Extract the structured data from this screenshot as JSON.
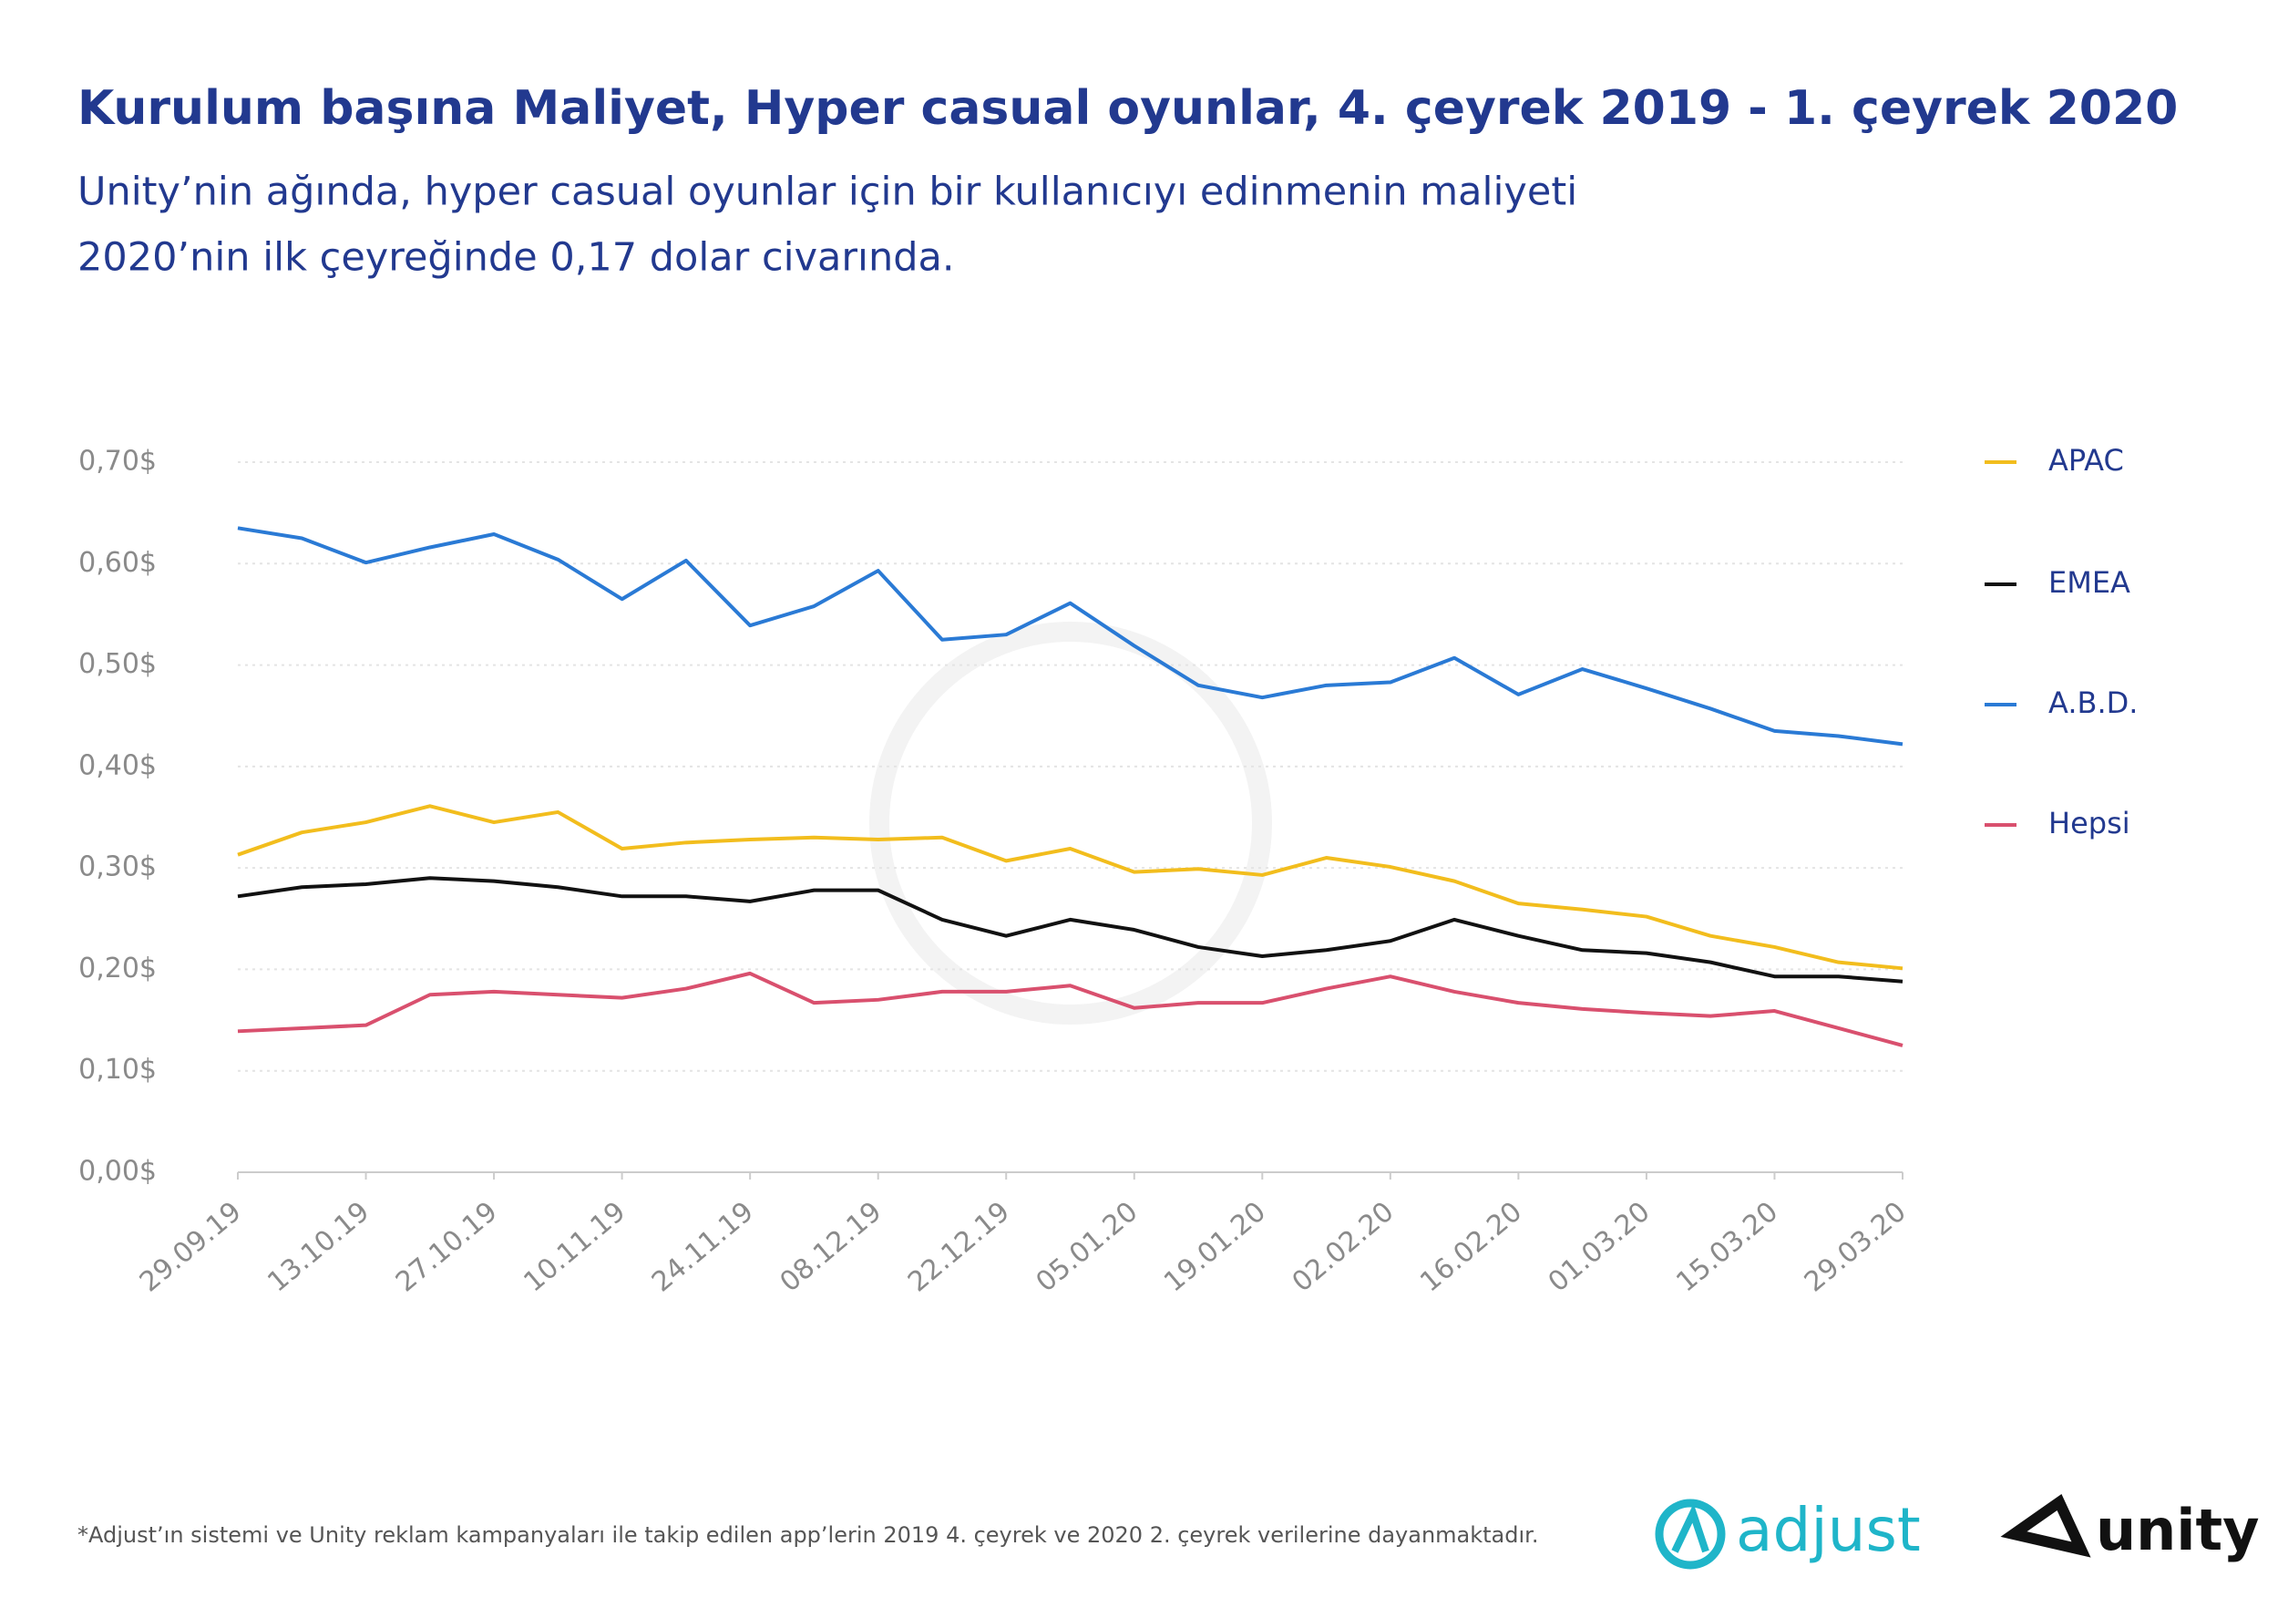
{
  "chart_data": {
    "type": "line",
    "title": "Kurulum başına Maliyet, Hyper casual oyunlar, 4. çeyrek 2019 - 1. çeyrek 2020",
    "subtitle": [
      "Unity’nin ağında, hyper casual oyunlar için bir kullanıcıyı edinmenin maliyeti",
      "2020’nin ilk çeyreğinde 0,17 dolar civarında."
    ],
    "footnote": "*Adjust’ın sistemi ve Unity reklam kampanyaları ile takip edilen app’lerin 2019 4. çeyrek ve 2020 2. çeyrek verilerine dayanmaktadır.",
    "logos": [
      "adjust",
      "unity"
    ],
    "categories": [
      "29.09.19",
      null,
      "13.10.19",
      null,
      "27.10.19",
      null,
      "10.11.19",
      null,
      "24.11.19",
      null,
      "08.12.19",
      null,
      "22.12.19",
      null,
      "05.01.20",
      null,
      "19.01.20",
      null,
      "02.02.20",
      null,
      "16.02.20",
      null,
      "01.03.20",
      null,
      "15.03.20",
      null,
      "29.03.20"
    ],
    "series": [
      {
        "name": "APAC",
        "color": "#f2bd1d",
        "values": [
          0.313,
          0.335,
          0.345,
          0.361,
          0.345,
          0.355,
          0.319,
          0.325,
          0.328,
          0.33,
          0.328,
          0.33,
          0.307,
          0.319,
          0.296,
          0.299,
          0.293,
          0.31,
          0.301,
          0.287,
          0.265,
          0.259,
          0.252,
          0.233,
          0.222,
          0.207,
          0.201
        ]
      },
      {
        "name": "EMEA",
        "color": "#111111",
        "values": [
          0.272,
          0.281,
          0.284,
          0.29,
          0.287,
          0.281,
          0.272,
          0.272,
          0.267,
          0.278,
          0.278,
          0.249,
          0.233,
          0.249,
          0.239,
          0.222,
          0.213,
          0.219,
          0.228,
          0.249,
          0.233,
          0.219,
          0.216,
          0.207,
          0.193,
          0.193,
          0.188
        ]
      },
      {
        "name": "A.B.D.",
        "color": "#2a7ad5",
        "values": [
          0.635,
          0.625,
          0.601,
          0.616,
          0.629,
          0.604,
          0.565,
          0.603,
          0.539,
          0.558,
          0.593,
          0.525,
          0.53,
          0.561,
          0.519,
          0.48,
          0.468,
          0.48,
          0.483,
          0.507,
          0.471,
          0.496,
          0.477,
          0.457,
          0.435,
          0.43,
          0.422
        ]
      },
      {
        "name": "Hepsi",
        "color": "#d9506e",
        "values": [
          0.139,
          0.142,
          0.145,
          0.175,
          0.178,
          0.175,
          0.172,
          0.181,
          0.196,
          0.167,
          0.17,
          0.178,
          0.178,
          0.184,
          0.162,
          0.167,
          0.167,
          0.181,
          0.193,
          0.178,
          0.167,
          0.161,
          0.157,
          0.154,
          0.159,
          0.142,
          0.125
        ]
      }
    ],
    "ylim": [
      0,
      0.7
    ],
    "yticks": [
      {
        "value": 0,
        "label": "0,00$"
      },
      {
        "value": 0.1,
        "label": "0,10$"
      },
      {
        "value": 0.2,
        "label": "0,20$"
      },
      {
        "value": 0.3,
        "label": "0,30$"
      },
      {
        "value": 0.4,
        "label": "0,40$"
      },
      {
        "value": 0.5,
        "label": "0,50$"
      },
      {
        "value": 0.6,
        "label": "0,60$"
      },
      {
        "value": 0.7,
        "label": "0,70$"
      }
    ],
    "grid": true
  }
}
